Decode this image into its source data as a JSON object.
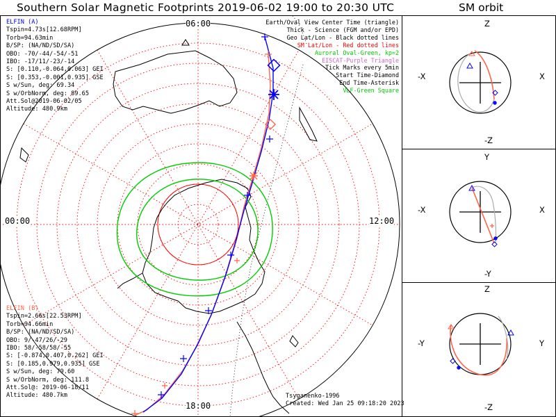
{
  "title": "Southern Solar Magnetic Footprints 2019-06-02 19:00 to 20:30 UTC",
  "sm_orbit_title": "SM orbit",
  "time_labels": {
    "top": "06:00",
    "left": "00:00",
    "right": "12:00",
    "bottom": "18:00"
  },
  "elfin_a": {
    "name": "ELFIN (A)",
    "color": "#0000ff",
    "lines": [
      "Tspin=4.73s[12.68RPM]",
      "Torb=94.63min",
      "B/SP: (NA/ND/SD/SA)",
      "OBO: -70/-44/-54/-51",
      "IBO: -17/11/-23/-14",
      "S: [0.110,-0.064,0.063] GEI",
      "S: [0.353,-0.001,0.935] GSE",
      "S w/Sun, deg: 69.34",
      "S w/OrbNorm, deg: 89.65",
      "Att.Sol@2019-06-02/05",
      "Altitude: 480.9km"
    ]
  },
  "elfin_b": {
    "name": "ELFIN (B)",
    "color": "#ff6347",
    "lines": [
      "Tspin=2.66s[22.53RPM]",
      "Torb=94.66min",
      "B/SP: (NA/ND/SD/SA)",
      "OBO: 9/-47/26/-29",
      "IBO: 58/-58/58/-55",
      "S: [-0.874,0.407,0.262] GEI",
      "S: [0.185,0.979,0.935] GSE",
      "S w/Sun, deg: 79.60",
      "S w/OrbNorm, deg: 111.8",
      "Att.Sol@: 2019-06-18/11",
      "Altitude: 480.7km"
    ]
  },
  "legend": [
    {
      "text": "Earth/Oval View Center Time (triangle)",
      "color": "#000000"
    },
    {
      "text": "Thick - Science (FGM and/or EPD)",
      "color": "#000000"
    },
    {
      "text": "Geo Lat/Lon - Black dotted lines",
      "color": "#000000"
    },
    {
      "text": "SM Lat/Lon - Red dotted lines",
      "color": "#ff0000"
    },
    {
      "text": "Auroral Oval-Green, kp=2",
      "color": "#00cc00"
    },
    {
      "text": "EISCAT-Purple Triangle",
      "color": "#cc66cc"
    },
    {
      "text": "Tick Marks every 5min",
      "color": "#000000"
    },
    {
      "text": "Start Time-Diamond",
      "color": "#000000"
    },
    {
      "text": "End Time-Asterisk",
      "color": "#000000"
    },
    {
      "text": "VLF-Green Square",
      "color": "#00cc00"
    }
  ],
  "credits": {
    "model": "Tsyganenko-1996",
    "created": "Created: Wed Jan 25 09:18:20 2023"
  },
  "sm_panels": [
    {
      "top": "Z",
      "bottom": "-Z",
      "left": "-X",
      "right": "X"
    },
    {
      "top": "Y",
      "bottom": "-Y",
      "left": "-X",
      "right": "X"
    },
    {
      "top": "Z",
      "bottom": "-Z",
      "left": "-Y",
      "right": "Y"
    }
  ],
  "colors": {
    "probe_a": "#0000ff",
    "probe_b": "#ff6347",
    "oval": "#00cc00",
    "sm_grid": "#ff0000"
  }
}
